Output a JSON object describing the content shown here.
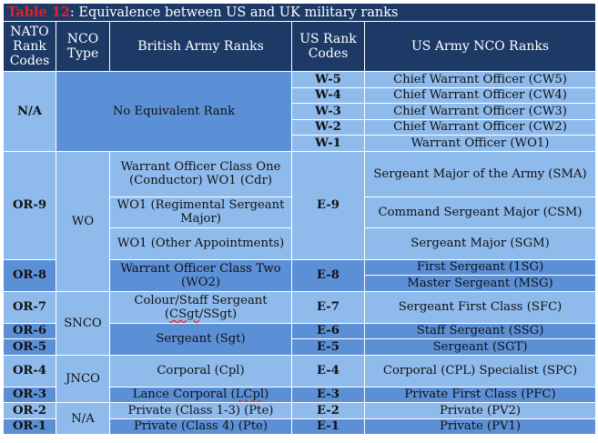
{
  "caption": {
    "table_number": "Table 12",
    "title": ": Equivalence between US and UK military ranks"
  },
  "headers": {
    "nato": "NATO Rank Codes",
    "nco_type": "NCO Type",
    "british": "British Army Ranks",
    "us_codes": "US Rank Codes",
    "us_nco": "US Army NCO Ranks"
  },
  "rows": {
    "na": {
      "nato": "N/A",
      "british": "No Equivalent Rank",
      "us": [
        {
          "code": "W-5",
          "rank": "Chief Warrant Officer (CW5)"
        },
        {
          "code": "W-4",
          "rank": "Chief Warrant Officer (CW4)"
        },
        {
          "code": "W-3",
          "rank": "Chief Warrant Officer (CW3)"
        },
        {
          "code": "W-2",
          "rank": "Chief Warrant Officer (CW2)"
        },
        {
          "code": "W-1",
          "rank": "Warrant Officer (WO1)"
        }
      ]
    },
    "or9": {
      "nato": "OR-9",
      "nco": "WO",
      "code": "E-9",
      "british": [
        "Warrant Officer Class One (Conductor) WO1 (Cdr)",
        "WO1 (Regimental Sergeant Major)",
        "WO1 (Other Appointments)"
      ],
      "us": [
        "Sergeant Major of the Army (SMA)",
        "Command Sergeant Major (CSM)",
        "Sergeant Major (SGM)"
      ]
    },
    "or8": {
      "nato": "OR-8",
      "code": "E-8",
      "british": "Warrant Officer Class Two (WO2)",
      "us": [
        "First Sergeant (1SG)",
        "Master Sergeant (MSG)"
      ]
    },
    "snco": {
      "nco": "SNCO",
      "or7": {
        "nato": "OR-7",
        "british_prefix": "Colour/Staff Sergeant (",
        "british_underlined": "CSgt",
        "british_suffix": "/SSgt)",
        "code": "E-7",
        "us": "Sergeant First Class (SFC)"
      },
      "sergeant": "Sergeant (Sgt)",
      "or6": {
        "nato": "OR-6",
        "code": "E-6",
        "us": "Staff Sergeant (SSG)"
      },
      "or5": {
        "nato": "OR-5",
        "code": "E-5",
        "us": "Sergeant (SGT)"
      }
    },
    "jnco": {
      "nco": "JNCO",
      "or4": {
        "nato": "OR-4",
        "british": "Corporal (Cpl)",
        "code": "E-4",
        "us": "Corporal (CPL) Specialist (SPC)"
      },
      "or3": {
        "nato": "OR-3",
        "british_prefix": "Lance Corporal (",
        "british_underlined": "LCpl",
        "british_suffix": ")",
        "code": "E-3",
        "us": "Private First Class (PFC)"
      }
    },
    "na_nco": {
      "nco": "N/A",
      "or2": {
        "nato": "OR-2",
        "british": "Private (Class 1-3) (Pte)",
        "code": "E-2",
        "us": "Private (PV2)"
      },
      "or1": {
        "nato": "OR-1",
        "british": "Private (Class 4) (Pte)",
        "code": "E-1",
        "us": "Private (PV1)"
      }
    }
  },
  "colors": {
    "header_bg": "#1d3a66",
    "cell_dark": "#5c90d6",
    "cell_light": "#8fbaec",
    "table_number": "#e52222"
  }
}
